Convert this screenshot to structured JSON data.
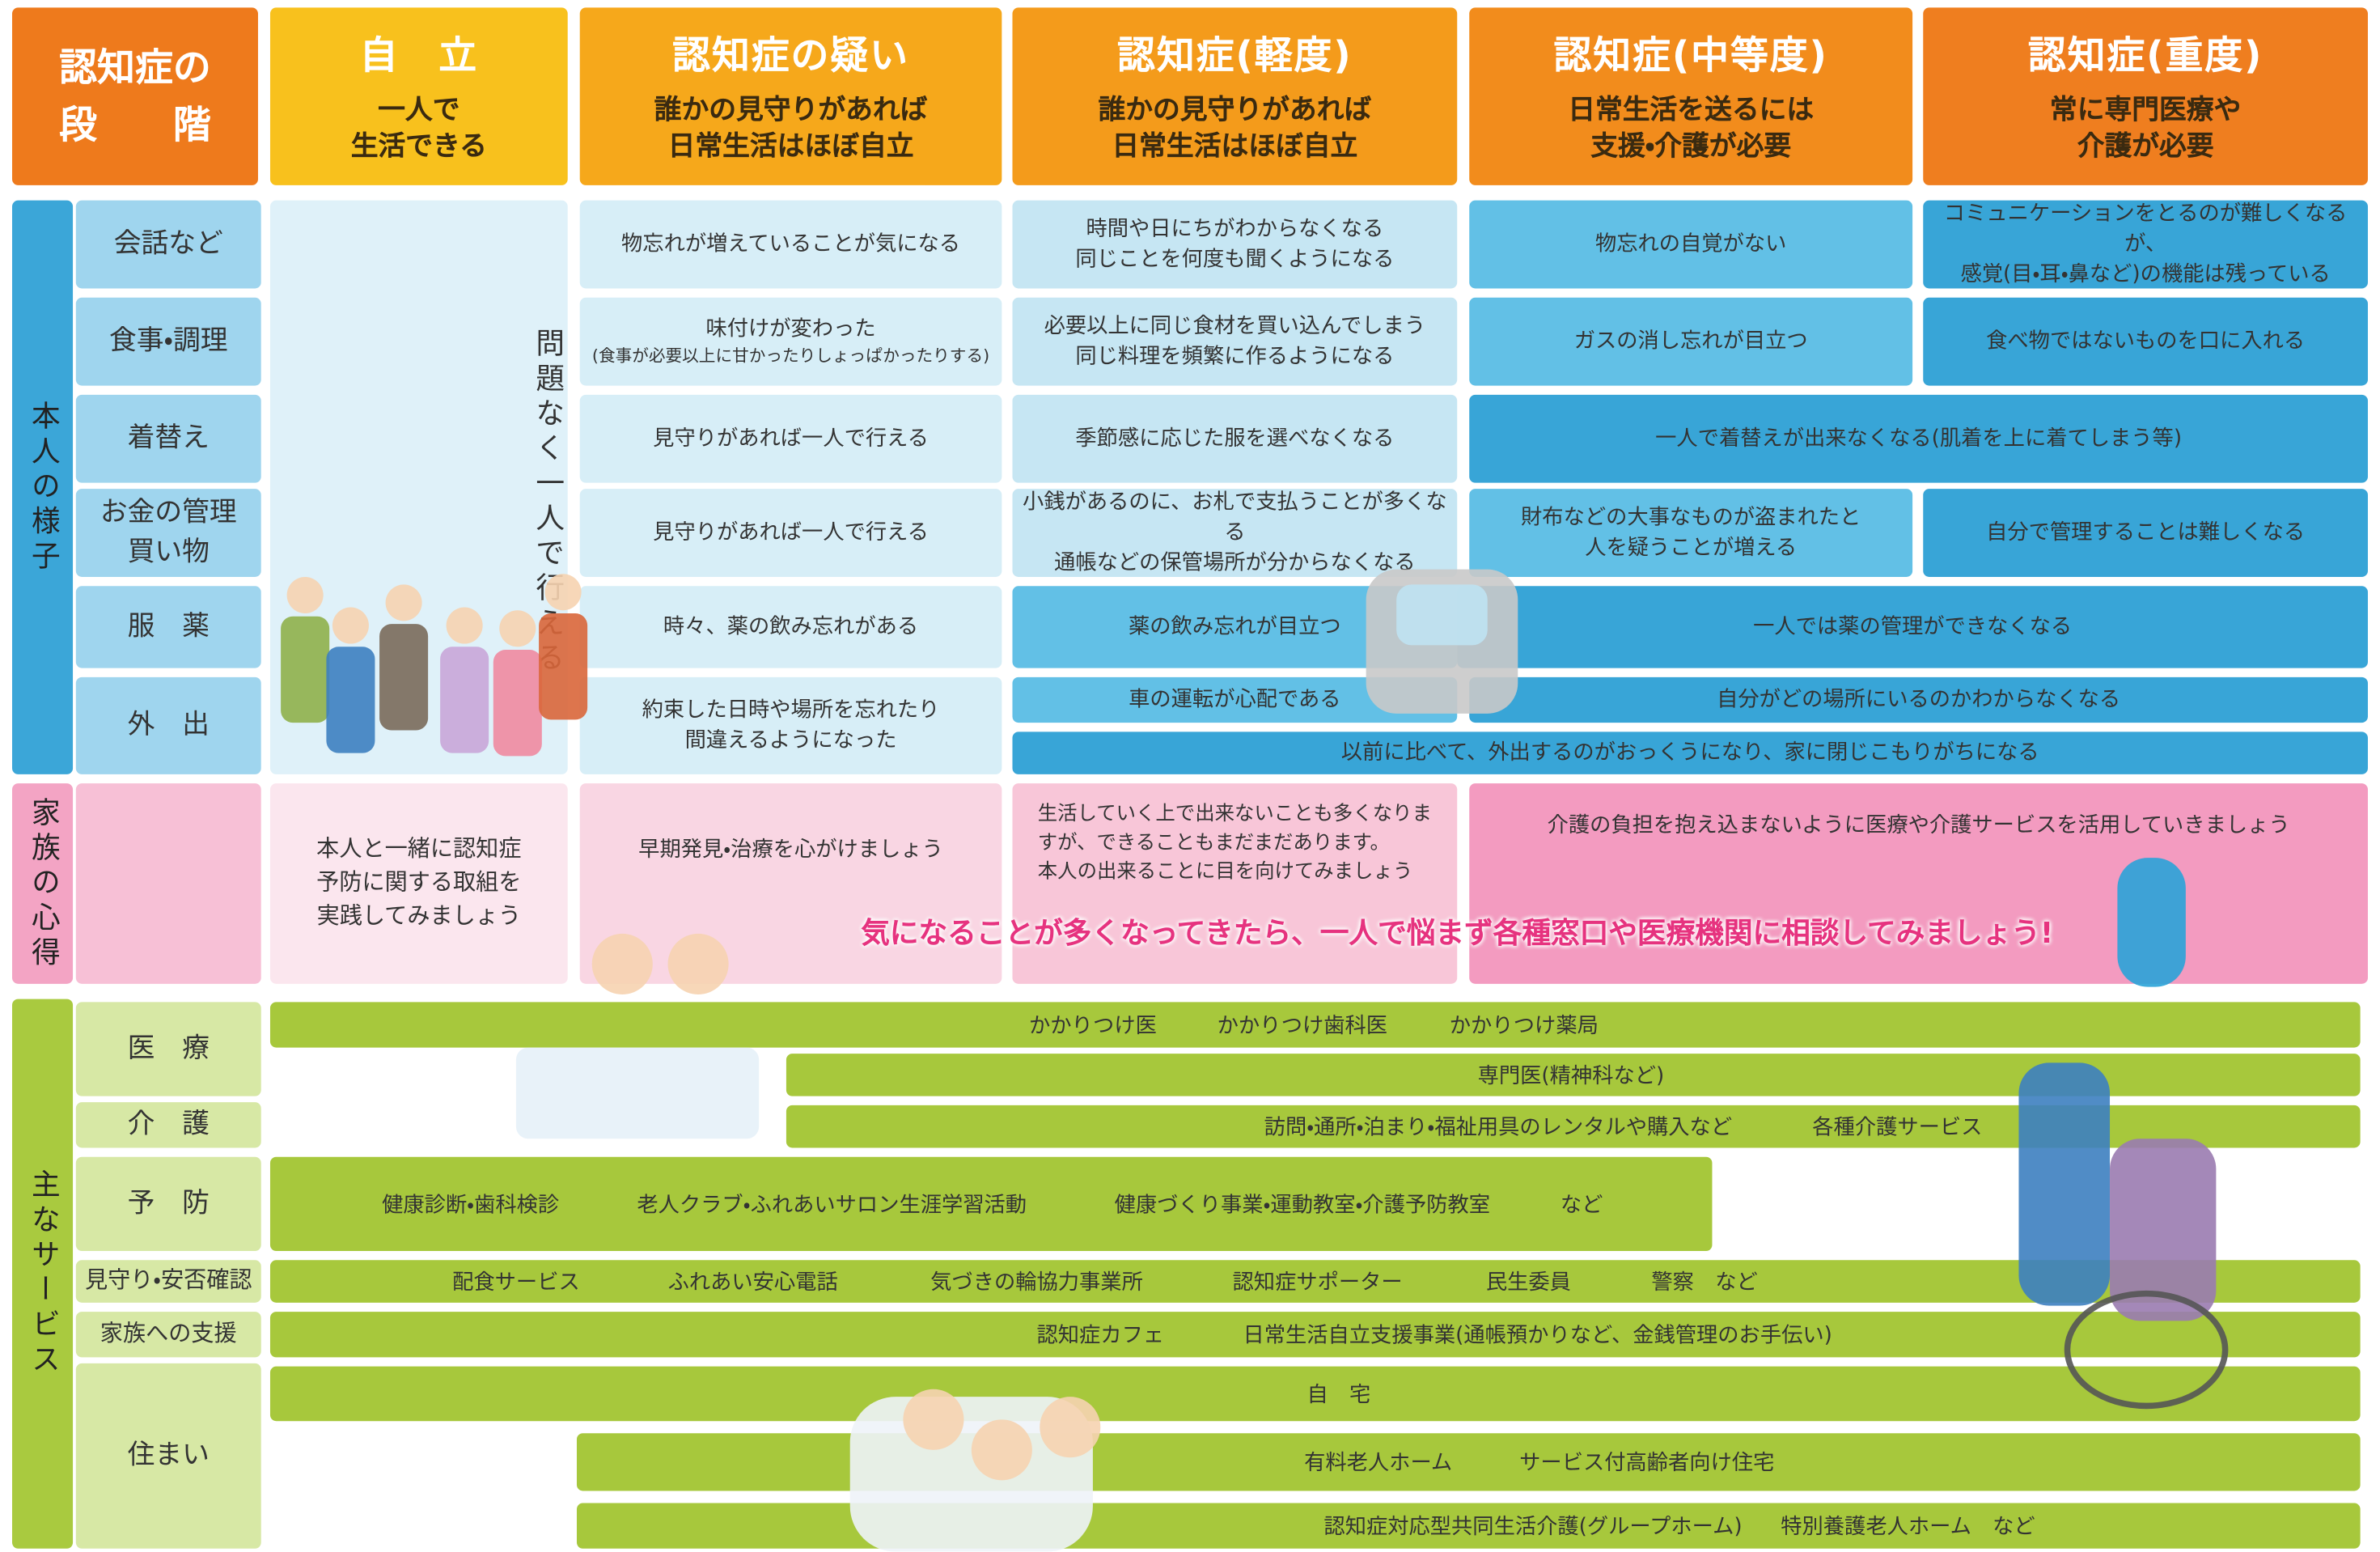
{
  "header": {
    "stage_label": "認知症の\n段　　階",
    "stages": [
      {
        "title": "自　立",
        "desc": "一人で\n生活できる"
      },
      {
        "title": "認知症の疑い",
        "desc": "誰かの見守りがあれば\n日常生活はほぼ自立"
      },
      {
        "title": "認知症(軽度)",
        "desc": "誰かの見守りがあれば\n日常生活はほぼ自立"
      },
      {
        "title": "認知症(中等度)",
        "desc": "日常生活を送るには\n支援・介護が必要"
      },
      {
        "title": "認知症(重度)",
        "desc": "常に専門医療や\n介護が必要"
      }
    ]
  },
  "condition": {
    "label": "本人の様子",
    "independent": "問題なく一人で行える",
    "rows": [
      {
        "label": "会話など",
        "cells": [
          "物忘れが増えていることが気になる",
          "時間や日にちがわからなくなる\n同じことを何度も聞くようになる",
          "物忘れの自覚がない",
          "コミュニケーションをとるのが難しくなるが、\n感覚(目・耳・鼻など)の機能は残っている"
        ]
      },
      {
        "label": "食事・調理",
        "cells": [
          "味付けが変わった",
          "必要以上に同じ食材を買い込んでしまう\n同じ料理を頻繁に作るようになる",
          "ガスの消し忘れが目立つ",
          "食べ物ではないものを口に入れる"
        ],
        "note": "(食事が必要以上に甘かったりしょっぱかったりする)"
      },
      {
        "label": "着替え",
        "cells": [
          "見守りがあれば一人で行える",
          "季節感に応じた服を選べなくなる",
          "一人で着替えが出来なくなる(肌着を上に着てしまう等)"
        ]
      },
      {
        "label": "お金の管理\n買い物",
        "cells": [
          "見守りがあれば一人で行える",
          "小銭があるのに、お札で支払うことが多くなる\n通帳などの保管場所が分からなくなる",
          "財布などの大事なものが盗まれたと\n人を疑うことが増える",
          "自分で管理することは難しくなる"
        ]
      },
      {
        "label": "服　薬",
        "cells": [
          "時々、薬の飲み忘れがある",
          "薬の飲み忘れが目立つ",
          "一人では薬の管理ができなくなる"
        ]
      },
      {
        "label": "外　出",
        "cells": [
          "約束した日時や場所を忘れたり\n間違えるようになった",
          "車の運転が心配である",
          "自分がどの場所にいるのかわからなくなる",
          "以前に比べて、外出するのがおっくうになり、家に閉じこもりがちになる"
        ]
      }
    ]
  },
  "family": {
    "label": "家族の心得",
    "cells": [
      "本人と一緒に認知症\n予防に関する取組を\n実践してみましょう",
      "早期発見・治療を心がけましょう",
      "生活していく上で出来ないことも多くなりま\nすが、できることもまだまだあります。\n本人の出来ることに目を向けてみましょう",
      "介護の負担を抱え込まないように医療や介護サービスを活用していきましょう"
    ],
    "banner": "気になることが多くなってきたら、一人で悩まず各種窓口や医療機関に相談してみましょう!"
  },
  "services": {
    "label": "主なサービス",
    "rows": [
      {
        "label": "医　療",
        "bars": [
          [
            "かかりつけ医",
            "かかりつけ歯科医",
            "かかりつけ薬局"
          ],
          [
            "専門医(精神科など)"
          ]
        ]
      },
      {
        "label": "介　護",
        "bars": [
          [
            "訪問・通所・泊まり・福祉用具のレンタルや購入など",
            "各種介護サービス"
          ]
        ]
      },
      {
        "label": "予　防",
        "bars": [
          [
            "健康診断・歯科検診",
            "老人クラブ・ふれあいサロン生涯学習活動",
            "健康づくり事業・運動教室・介護予防教室",
            "など"
          ]
        ]
      },
      {
        "label": "見守り・安否確認",
        "bars": [
          [
            "配食サービス",
            "ふれあい安心電話",
            "気づきの輪協力事業所",
            "認知症サポーター",
            "民生委員",
            "警察　など"
          ]
        ]
      },
      {
        "label": "家族への支援",
        "bars": [
          [
            "認知症カフェ",
            "日常生活自立支援事業(通帳預かりなど、金銭管理のお手伝い)"
          ]
        ]
      },
      {
        "label": "住まい",
        "bars": [
          [
            "自　宅"
          ],
          [
            "有料老人ホーム",
            "サービス付高齢者向け住宅"
          ],
          [
            "認知症対応型共同生活介護(グループホーム)",
            "特別養護老人ホーム　など"
          ]
        ]
      }
    ]
  }
}
